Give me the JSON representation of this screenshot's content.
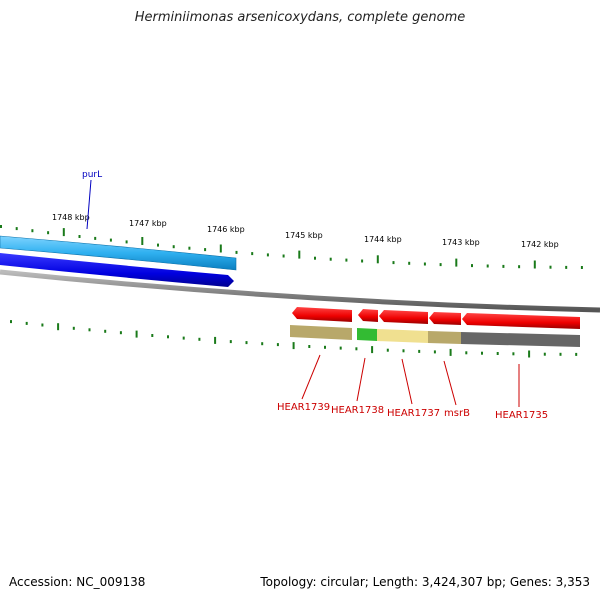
{
  "title": "Herminiimonas arsenicoxydans, complete genome",
  "footer": {
    "accession": "Accession: NC_009138",
    "summary": "Topology: circular; Length: 3,424,307 bp; Genes: 3,353"
  },
  "ruler": {
    "ticks": [
      "1748 kbp",
      "1747 kbp",
      "1746 kbp",
      "1745 kbp",
      "1744 kbp",
      "1743 kbp",
      "1742 kbp"
    ],
    "tick_color": "#1a7a1a"
  },
  "genes_upper": [
    {
      "label": "purL",
      "label_color": "#0000c0",
      "colors": {
        "cds": "#33aaff",
        "gene": "#0000ee"
      }
    }
  ],
  "genes_lower": [
    {
      "label": "HEAR1739",
      "cds_color": "#ee0000",
      "feature_color": "#b8a86a"
    },
    {
      "label": "HEAR1738",
      "cds_color": "#ee0000",
      "feature_color": "#33bb33"
    },
    {
      "label": "HEAR1737",
      "cds_color": "#ee0000",
      "feature_color": "#f0e090"
    },
    {
      "label": "msrB",
      "cds_color": "#ee0000",
      "feature_color": "#b8a86a"
    },
    {
      "label": "HEAR1735",
      "cds_color": "#ee0000",
      "feature_color": "#666666"
    }
  ],
  "backbone_color": "#777777"
}
